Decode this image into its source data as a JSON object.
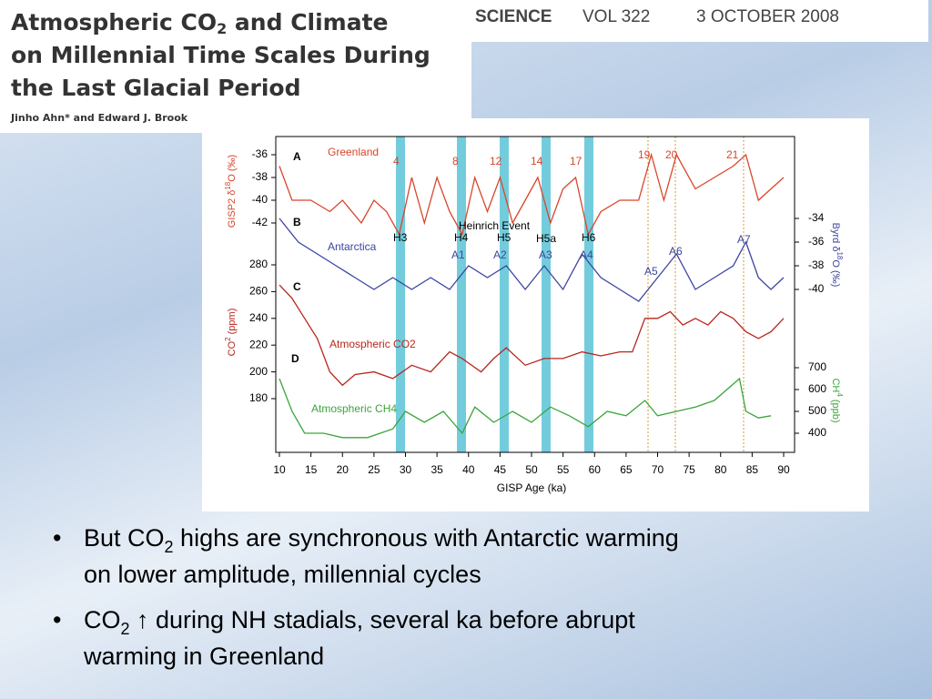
{
  "header": {
    "title": {
      "line1": [
        "Atmospheric CO",
        "2",
        " and Climate"
      ],
      "line2": "on Millennial Time Scales During",
      "line3": "the Last Glacial Period"
    },
    "authors": "Jinho Ahn* and Edward J. Brook",
    "journal": "SCIENCE",
    "volume": "VOL 322",
    "date": "3 OCTOBER 2008"
  },
  "figure": {
    "xlabel": "GISP Age (ka)",
    "xlim": [
      10,
      90
    ],
    "xticks": [
      10,
      15,
      20,
      25,
      30,
      35,
      40,
      45,
      50,
      55,
      60,
      65,
      70,
      75,
      80,
      85,
      90
    ],
    "event_title": "Heinrich Event",
    "heinrich": [
      "H3",
      "H4",
      "H5",
      "H5a",
      "H6"
    ],
    "interstadials": [
      "4",
      "8",
      "12",
      "14",
      "17",
      "19",
      "20",
      "21"
    ],
    "antarctic_events": [
      "A1",
      "A2",
      "A3",
      "A4",
      "A5",
      "A6",
      "A7"
    ],
    "panels": [
      {
        "label": "A",
        "name": "Greenland",
        "axis_label": [
          "GISP2 δ",
          "18",
          "O (‰)"
        ],
        "color": "#d9452b",
        "yticks": [
          -36,
          -38,
          -40,
          -42
        ],
        "x": [
          10,
          12,
          15,
          18,
          20,
          23,
          25,
          27,
          29,
          31,
          33,
          35,
          37,
          39,
          41,
          43,
          45,
          47,
          49,
          51,
          53,
          55,
          57,
          59,
          61,
          64,
          67,
          69,
          71,
          73,
          76,
          79,
          82,
          84,
          86,
          88,
          90
        ],
        "values": [
          -37,
          -40,
          -40,
          -41,
          -40,
          -42,
          -40,
          -41,
          -43,
          -38,
          -42,
          -38,
          -41,
          -43,
          -38,
          -41,
          -38,
          -42,
          -40,
          -38,
          -42,
          -39,
          -38,
          -43,
          -41,
          -40,
          -40,
          -36,
          -40,
          -36,
          -39,
          -38,
          -37,
          -36,
          -40,
          -39,
          -38
        ]
      },
      {
        "label": "B",
        "name": "Antarctica",
        "axis_label": [
          "Byrd δ",
          "18",
          "O (‰)"
        ],
        "color": "#3b45a0",
        "yticks": [
          -34,
          -36,
          -38,
          -40
        ],
        "x": [
          10,
          13,
          16,
          19,
          22,
          25,
          28,
          31,
          34,
          37,
          40,
          43,
          46,
          49,
          52,
          55,
          58,
          61,
          64,
          67,
          70,
          73,
          76,
          79,
          82,
          84,
          86,
          88,
          90
        ],
        "values": [
          -34,
          -36,
          -37,
          -38,
          -39,
          -40,
          -39,
          -40,
          -39,
          -40,
          -38,
          -39,
          -38,
          -40,
          -38,
          -40,
          -37,
          -39,
          -40,
          -41,
          -39,
          -37,
          -40,
          -39,
          -38,
          -36,
          -39,
          -40,
          -39
        ]
      },
      {
        "label": "C",
        "name": "Atmospheric CO2",
        "axis_label": [
          "CO",
          "2",
          " (ppm)"
        ],
        "color": "#b8261c",
        "yticks": [
          280,
          260,
          240,
          220,
          200,
          180
        ],
        "x": [
          10,
          12,
          14,
          16,
          18,
          20,
          22,
          25,
          28,
          31,
          34,
          37,
          39,
          42,
          44,
          46,
          49,
          52,
          55,
          58,
          61,
          64,
          66,
          68,
          70,
          72,
          74,
          76,
          78,
          80,
          82,
          84,
          86,
          88,
          90
        ],
        "values": [
          265,
          255,
          240,
          225,
          200,
          190,
          198,
          200,
          195,
          205,
          200,
          215,
          210,
          200,
          210,
          218,
          205,
          210,
          210,
          215,
          212,
          215,
          215,
          240,
          240,
          245,
          235,
          240,
          235,
          245,
          240,
          230,
          225,
          230,
          240
        ]
      },
      {
        "label": "D",
        "name": "Atmospheric CH4",
        "axis_label": [
          "CH",
          "4",
          " (ppb)"
        ],
        "color": "#3aa63a",
        "yticks": [
          700,
          600,
          500,
          400
        ],
        "x": [
          10,
          12,
          14,
          17,
          20,
          24,
          28,
          30,
          33,
          36,
          39,
          41,
          44,
          47,
          50,
          53,
          56,
          59,
          62,
          65,
          68,
          70,
          73,
          76,
          79,
          83,
          84,
          86,
          88
        ],
        "values": [
          650,
          500,
          400,
          400,
          380,
          380,
          420,
          500,
          450,
          500,
          400,
          520,
          450,
          500,
          450,
          520,
          480,
          430,
          500,
          480,
          550,
          480,
          500,
          520,
          550,
          650,
          500,
          470,
          480
        ]
      }
    ]
  },
  "bullets": [
    [
      "But CO",
      "2",
      " highs are synchronous with Antarctic warming",
      "on lower amplitude, millennial cycles"
    ],
    [
      "CO",
      "2",
      " ↑ during NH stadials, several ka before abrupt",
      "warming in Greenland"
    ]
  ]
}
